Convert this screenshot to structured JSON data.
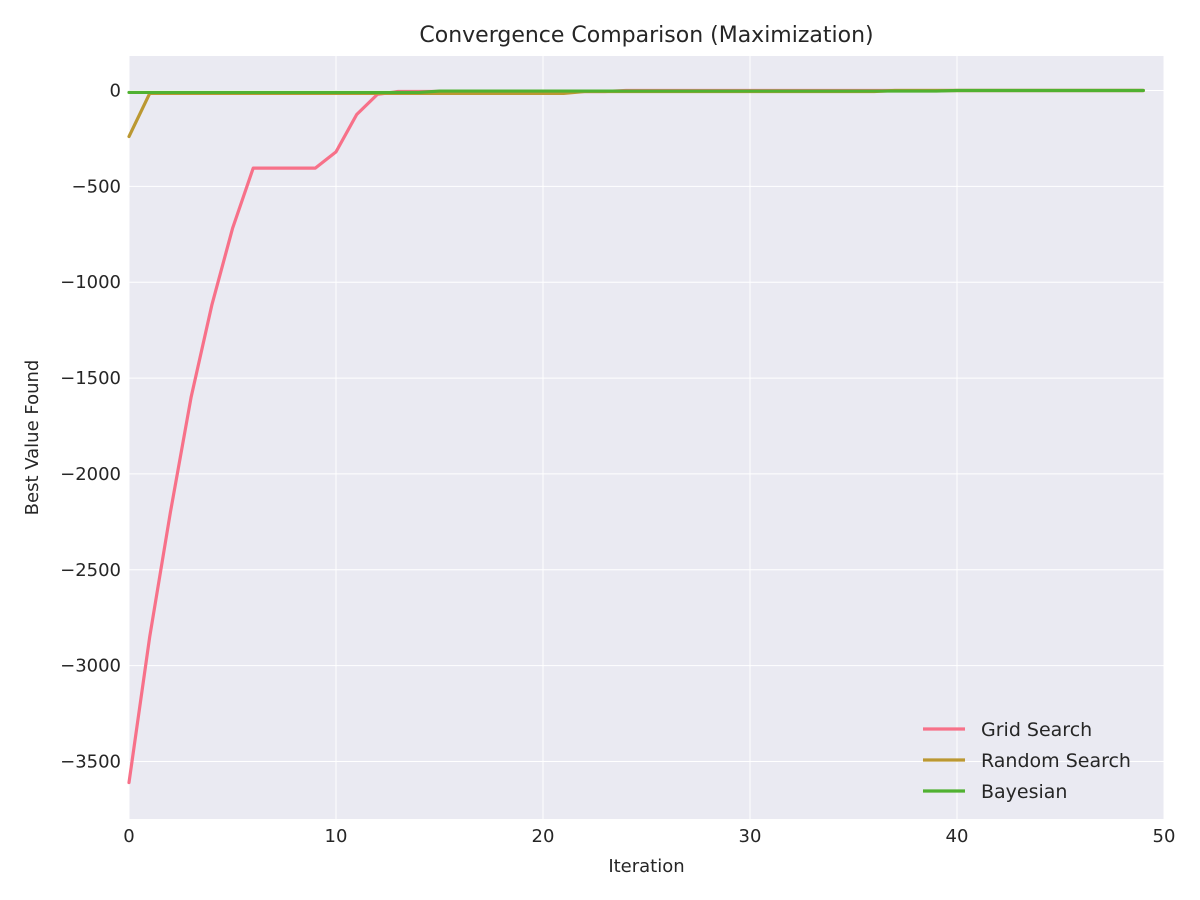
{
  "chart_data": {
    "type": "line",
    "title": "Convergence Comparison (Maximization)",
    "xlabel": "Iteration",
    "ylabel": "Best Value Found",
    "xlim": [
      0,
      50
    ],
    "ylim": [
      -3800,
      180
    ],
    "xticks": [
      0,
      10,
      20,
      30,
      40,
      50
    ],
    "yticks": [
      0,
      -500,
      -1000,
      -1500,
      -2000,
      -2500,
      -3000,
      -3500
    ],
    "grid": true,
    "legend_position": "lower-right",
    "background": "#eaeaf2",
    "series": [
      {
        "name": "Grid Search",
        "color": "#f77189",
        "x": [
          0,
          1,
          2,
          3,
          4,
          5,
          6,
          7,
          8,
          9,
          10,
          11,
          12,
          13,
          14,
          15,
          16,
          17,
          18,
          19,
          20,
          21,
          22,
          23,
          24,
          25,
          26,
          27,
          28,
          29,
          30,
          31,
          32,
          33,
          34,
          35,
          36,
          37,
          38,
          39,
          40,
          41,
          42,
          43,
          44,
          45,
          46,
          47,
          48,
          49
        ],
        "y": [
          -3610,
          -2850,
          -2200,
          -1600,
          -1120,
          -720,
          -405,
          -405,
          -405,
          -405,
          -320,
          -125,
          -20,
          -5,
          -5,
          -5,
          -5,
          -5,
          -5,
          -5,
          -5,
          -5,
          -5,
          -5,
          0,
          0,
          0,
          0,
          0,
          0,
          0,
          0,
          0,
          0,
          0,
          0,
          0,
          0,
          0,
          0,
          0,
          0,
          0,
          0,
          0,
          0,
          0,
          0,
          0,
          0
        ]
      },
      {
        "name": "Random Search",
        "color": "#bb9832",
        "x": [
          0,
          1,
          2,
          3,
          4,
          5,
          6,
          7,
          8,
          9,
          10,
          11,
          12,
          13,
          14,
          15,
          16,
          17,
          18,
          19,
          20,
          21,
          22,
          23,
          24,
          25,
          26,
          27,
          28,
          29,
          30,
          31,
          32,
          33,
          34,
          35,
          36,
          37,
          38,
          39,
          40,
          41,
          42,
          43,
          44,
          45,
          46,
          47,
          48,
          49
        ],
        "y": [
          -240,
          -15,
          -15,
          -15,
          -15,
          -15,
          -15,
          -15,
          -15,
          -15,
          -15,
          -15,
          -15,
          -15,
          -15,
          -15,
          -15,
          -15,
          -15,
          -15,
          -15,
          -15,
          -5,
          -5,
          -5,
          -5,
          -5,
          -5,
          -5,
          -5,
          -5,
          -5,
          -5,
          -5,
          -5,
          -5,
          -5,
          0,
          0,
          0,
          0,
          0,
          0,
          0,
          0,
          0,
          0,
          0,
          0,
          0
        ]
      },
      {
        "name": "Bayesian",
        "color": "#50b131",
        "x": [
          0,
          1,
          2,
          3,
          4,
          5,
          6,
          7,
          8,
          9,
          10,
          11,
          12,
          13,
          14,
          15,
          16,
          17,
          18,
          19,
          20,
          21,
          22,
          23,
          24,
          25,
          26,
          27,
          28,
          29,
          30,
          31,
          32,
          33,
          34,
          35,
          36,
          37,
          38,
          39,
          40,
          41,
          42,
          43,
          44,
          45,
          46,
          47,
          48,
          49
        ],
        "y": [
          -10,
          -10,
          -10,
          -10,
          -10,
          -10,
          -10,
          -10,
          -10,
          -10,
          -10,
          -10,
          -10,
          -10,
          -10,
          -3,
          -3,
          -3,
          -3,
          -3,
          -3,
          -3,
          -3,
          -3,
          -3,
          -3,
          -3,
          -3,
          -3,
          -3,
          -3,
          -3,
          -3,
          -3,
          -3,
          -3,
          -3,
          -3,
          -3,
          -3,
          0,
          0,
          0,
          0,
          0,
          0,
          0,
          0,
          0,
          0
        ]
      }
    ]
  }
}
